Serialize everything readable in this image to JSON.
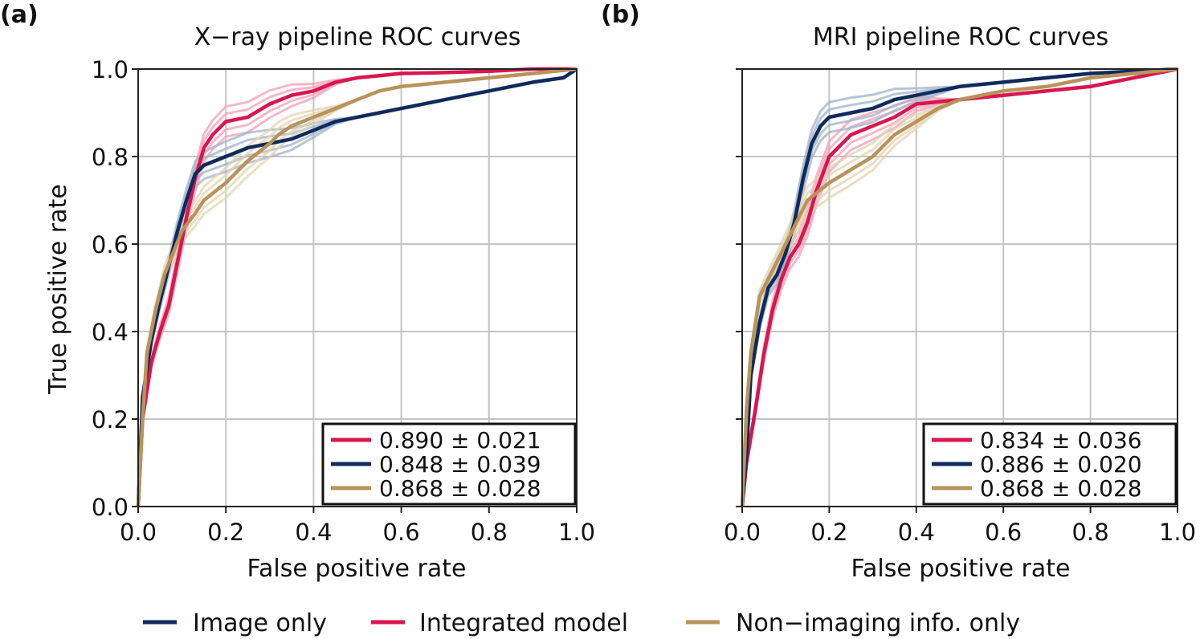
{
  "figure": {
    "panel_labels": [
      "(a)",
      "(b)"
    ],
    "legend": [
      {
        "label": "Image only",
        "color": "#0f2a5c"
      },
      {
        "label": "Integrated model",
        "color": "#d8164f"
      },
      {
        "label": "Non−imaging info. only",
        "color": "#b8945a"
      }
    ]
  },
  "chart_data": [
    {
      "type": "line",
      "title": "X−ray pipeline ROC curves",
      "xlabel": "False positive rate",
      "ylabel": "True positive rate",
      "xlim": [
        0,
        1
      ],
      "ylim": [
        0,
        1
      ],
      "xticks": [
        0.0,
        0.2,
        0.4,
        0.6,
        0.8,
        1.0
      ],
      "yticks": [
        0.0,
        0.2,
        0.4,
        0.6,
        0.8,
        1.0
      ],
      "tick_labels": [
        "0.0",
        "0.2",
        "0.4",
        "0.6",
        "0.8",
        "1.0"
      ],
      "grid": true,
      "legend_location": "lower-right",
      "series": [
        {
          "name": "Integrated model",
          "color": "#d8164f",
          "band_color": "#f0a0b8",
          "auc": "0.890 ± 0.021",
          "x": [
            0,
            0.01,
            0.03,
            0.05,
            0.07,
            0.09,
            0.11,
            0.13,
            0.15,
            0.17,
            0.2,
            0.25,
            0.3,
            0.35,
            0.4,
            0.45,
            0.5,
            0.55,
            0.6,
            0.7,
            0.8,
            0.9,
            1.0
          ],
          "y": [
            0,
            0.2,
            0.33,
            0.4,
            0.46,
            0.56,
            0.66,
            0.75,
            0.82,
            0.85,
            0.88,
            0.89,
            0.92,
            0.94,
            0.95,
            0.97,
            0.98,
            0.985,
            0.99,
            0.992,
            0.995,
            1.0,
            1.0
          ]
        },
        {
          "name": "Image only",
          "color": "#0f2a5c",
          "band_color": "#9fb3c8",
          "auc": "0.848 ± 0.039",
          "x": [
            0,
            0.01,
            0.03,
            0.05,
            0.07,
            0.09,
            0.11,
            0.13,
            0.15,
            0.2,
            0.25,
            0.3,
            0.35,
            0.4,
            0.45,
            0.5,
            0.55,
            0.6,
            0.7,
            0.8,
            0.9,
            0.97,
            1.0
          ],
          "y": [
            0,
            0.25,
            0.38,
            0.47,
            0.55,
            0.63,
            0.7,
            0.76,
            0.78,
            0.8,
            0.82,
            0.83,
            0.84,
            0.86,
            0.88,
            0.89,
            0.9,
            0.91,
            0.93,
            0.95,
            0.97,
            0.98,
            1.0
          ]
        },
        {
          "name": "Non−imaging info. only",
          "color": "#b8945a",
          "band_color": "#e3d3b3",
          "auc": "0.868 ± 0.028",
          "x": [
            0,
            0.01,
            0.02,
            0.04,
            0.06,
            0.08,
            0.1,
            0.13,
            0.15,
            0.2,
            0.25,
            0.3,
            0.32,
            0.35,
            0.4,
            0.45,
            0.5,
            0.55,
            0.6,
            0.7,
            0.8,
            0.9,
            1.0
          ],
          "y": [
            0,
            0.2,
            0.35,
            0.45,
            0.53,
            0.58,
            0.63,
            0.67,
            0.7,
            0.74,
            0.79,
            0.83,
            0.85,
            0.87,
            0.89,
            0.91,
            0.93,
            0.95,
            0.96,
            0.97,
            0.98,
            0.99,
            1.0
          ]
        }
      ]
    },
    {
      "type": "line",
      "title": "MRI pipeline ROC curves",
      "xlabel": "False positive rate",
      "ylabel": "",
      "xlim": [
        0,
        1
      ],
      "ylim": [
        0,
        1
      ],
      "xticks": [
        0.0,
        0.2,
        0.4,
        0.6,
        0.8,
        1.0
      ],
      "yticks": [
        0.0,
        0.2,
        0.4,
        0.6,
        0.8,
        1.0
      ],
      "tick_labels": [
        "0.0",
        "0.2",
        "0.4",
        "0.6",
        "0.8",
        "1.0"
      ],
      "grid": true,
      "legend_location": "lower-right",
      "series": [
        {
          "name": "Integrated model",
          "color": "#d8164f",
          "band_color": "#f0a0b8",
          "auc": "0.834 ± 0.036",
          "x": [
            0,
            0.01,
            0.03,
            0.05,
            0.07,
            0.09,
            0.11,
            0.13,
            0.15,
            0.17,
            0.2,
            0.25,
            0.3,
            0.35,
            0.4,
            0.5,
            0.6,
            0.7,
            0.8,
            0.9,
            1.0
          ],
          "y": [
            0,
            0.1,
            0.22,
            0.35,
            0.45,
            0.52,
            0.57,
            0.6,
            0.65,
            0.72,
            0.8,
            0.85,
            0.87,
            0.89,
            0.92,
            0.93,
            0.94,
            0.95,
            0.96,
            0.98,
            1.0
          ]
        },
        {
          "name": "Image only",
          "color": "#0f2a5c",
          "band_color": "#9fb3c8",
          "auc": "0.886 ± 0.020",
          "x": [
            0,
            0.01,
            0.02,
            0.04,
            0.06,
            0.08,
            0.1,
            0.12,
            0.14,
            0.16,
            0.18,
            0.2,
            0.25,
            0.3,
            0.35,
            0.4,
            0.5,
            0.6,
            0.7,
            0.8,
            0.9,
            1.0
          ],
          "y": [
            0,
            0.12,
            0.3,
            0.42,
            0.5,
            0.53,
            0.58,
            0.65,
            0.75,
            0.83,
            0.87,
            0.89,
            0.9,
            0.91,
            0.93,
            0.94,
            0.96,
            0.97,
            0.98,
            0.99,
            0.995,
            1.0
          ]
        },
        {
          "name": "Non−imaging info. only",
          "color": "#b8945a",
          "band_color": "#e3d3b3",
          "auc": "0.868 ± 0.028",
          "x": [
            0,
            0.01,
            0.02,
            0.04,
            0.06,
            0.08,
            0.1,
            0.13,
            0.15,
            0.2,
            0.25,
            0.3,
            0.35,
            0.4,
            0.45,
            0.5,
            0.6,
            0.7,
            0.8,
            0.9,
            1.0
          ],
          "y": [
            0,
            0.22,
            0.35,
            0.48,
            0.52,
            0.56,
            0.6,
            0.66,
            0.7,
            0.74,
            0.77,
            0.8,
            0.85,
            0.88,
            0.91,
            0.93,
            0.95,
            0.96,
            0.98,
            0.99,
            1.0
          ]
        }
      ]
    }
  ]
}
